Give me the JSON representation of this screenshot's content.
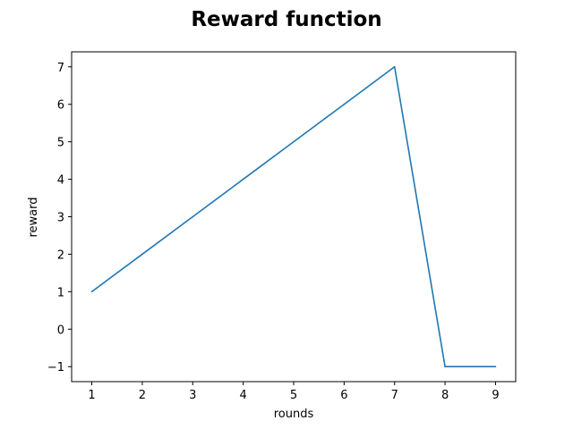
{
  "chart_data": {
    "type": "line",
    "title": "Reward function",
    "xlabel": "rounds",
    "ylabel": "reward",
    "x": [
      1,
      2,
      3,
      4,
      5,
      6,
      7,
      8,
      9
    ],
    "series": [
      {
        "values": [
          1,
          2,
          3,
          4,
          5,
          6,
          7,
          -1,
          -1
        ],
        "color": "#1f77b4"
      }
    ],
    "xticks": [
      1,
      2,
      3,
      4,
      5,
      6,
      7,
      8,
      9
    ],
    "yticks": [
      -1,
      0,
      1,
      2,
      3,
      4,
      5,
      6,
      7
    ],
    "ytick_labels": [
      "−1",
      "0",
      "1",
      "2",
      "3",
      "4",
      "5",
      "6",
      "7"
    ],
    "xlim": [
      0.6,
      9.4
    ],
    "ylim": [
      -1.4,
      7.4
    ],
    "grid": false,
    "legend": "none"
  }
}
